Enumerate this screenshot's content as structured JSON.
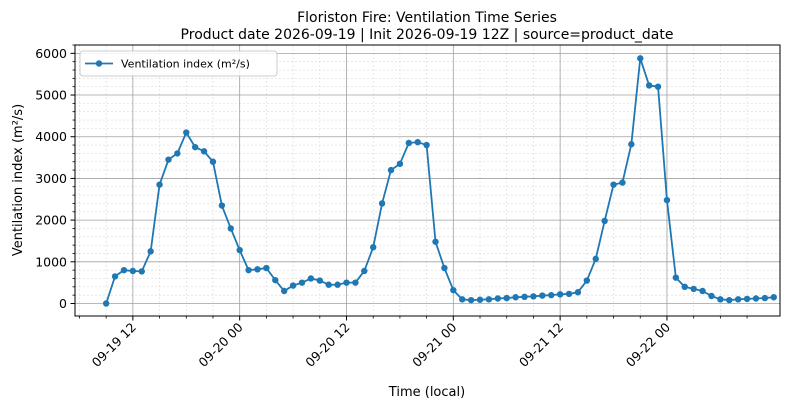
{
  "chart_data": {
    "type": "line",
    "title": "Floriston Fire: Ventilation Time Series",
    "subtitle": "Product date 2026-09-19 | Init 2026-09-19 12Z | source=product_date",
    "xlabel": "Time (local)",
    "ylabel": "Ventilation index (m²/s)",
    "x_unit": "hours",
    "xlim": [
      5.5,
      84.7
    ],
    "ylim": [
      -300,
      6200
    ],
    "y_ticks": [
      0,
      1000,
      2000,
      3000,
      4000,
      5000,
      6000
    ],
    "x_ticks": [
      {
        "x": 12,
        "label": "09-19 12"
      },
      {
        "x": 24,
        "label": "09-20 00"
      },
      {
        "x": 36,
        "label": "09-20 12"
      },
      {
        "x": 48,
        "label": "09-21 00"
      },
      {
        "x": 60,
        "label": "09-21 12"
      },
      {
        "x": 72,
        "label": "09-22 00"
      }
    ],
    "grid": true,
    "legend": "top-left",
    "color": "#1f77b4",
    "series": [
      {
        "name": "Ventilation index (m²/s)",
        "x": [
          9,
          10,
          11,
          12,
          13,
          14,
          15,
          16,
          17,
          18,
          19,
          20,
          21,
          22,
          23,
          24,
          25,
          26,
          27,
          28,
          29,
          30,
          31,
          32,
          33,
          34,
          35,
          36,
          37,
          38,
          39,
          40,
          41,
          42,
          43,
          44,
          45,
          46,
          47,
          48,
          49,
          50,
          51,
          52,
          53,
          54,
          55,
          56,
          57,
          58,
          59,
          60,
          61,
          62,
          63,
          64,
          65,
          66,
          67,
          68,
          69,
          70,
          71,
          72,
          73,
          74,
          75,
          76,
          77,
          78,
          79,
          80,
          81,
          82,
          83,
          84
        ],
        "values": [
          0,
          650,
          800,
          780,
          770,
          1250,
          2850,
          3450,
          3600,
          4100,
          3750,
          3650,
          3400,
          2350,
          1800,
          1280,
          800,
          820,
          850,
          560,
          300,
          430,
          500,
          600,
          550,
          450,
          450,
          500,
          500,
          780,
          1350,
          2400,
          3200,
          3350,
          3850,
          3870,
          3800,
          1480,
          850,
          320,
          100,
          80,
          90,
          100,
          120,
          130,
          150,
          160,
          170,
          190,
          200,
          220,
          230,
          270,
          550,
          1070,
          1980,
          2850,
          2900,
          3820,
          5880,
          5230,
          5200,
          2480,
          620,
          400,
          350,
          300,
          180,
          100,
          80,
          100,
          110,
          120,
          130,
          150
        ]
      }
    ]
  }
}
